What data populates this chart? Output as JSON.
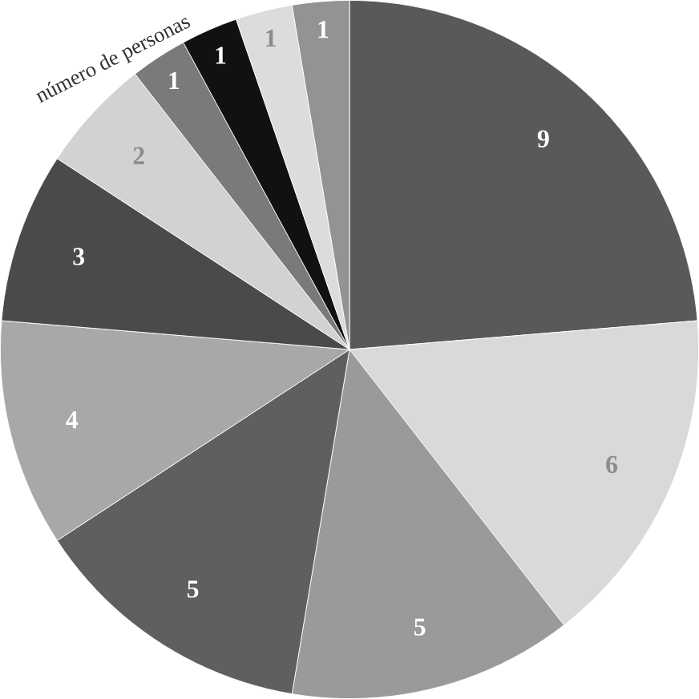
{
  "chart_data": {
    "type": "pie",
    "categories": [
      null,
      null,
      null,
      null,
      null,
      null,
      null,
      null,
      null,
      null,
      null
    ],
    "values": [
      9,
      6,
      5,
      5,
      4,
      3,
      2,
      1,
      1,
      1,
      1
    ],
    "colors": [
      "#58595b",
      "#d9d9d9",
      "#9a9a9a",
      "#5f5f5f",
      "#a8a8a8",
      "#4a4a4a",
      "#d2d2d2",
      "#7a7a7a",
      "#111111",
      "#dcdcdc",
      "#939393"
    ],
    "data_labels": true,
    "annotations": [
      "número de personas"
    ]
  }
}
